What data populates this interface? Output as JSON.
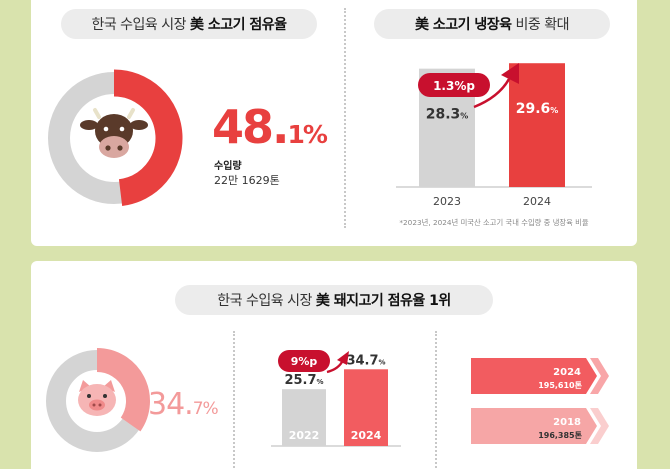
{
  "beef": {
    "share_title": {
      "prefix": "한국 수입육 시장",
      "bold": "美 소고기 점유율"
    },
    "share_main": "48.",
    "share_decimal": "1%",
    "share_value": 48.1,
    "import_label": "수입량",
    "import_value": "22만 1629톤",
    "frozen_title": {
      "bold": "美 소고기 냉장육",
      "suffix": "비중 확대"
    },
    "change_label": "1.3%p",
    "footnote": "*2023년, 2024년 미국산 소고기 국내 수입량 중 냉장육 비율"
  },
  "pork": {
    "title": {
      "prefix": "한국 수입육 시장",
      "bold": "美 돼지고기 점유율 1위"
    },
    "share_main": "34.",
    "share_decimal": "7%",
    "share_value": 34.7,
    "change_label": "9%p"
  },
  "colors": {
    "red": "#e8403f",
    "red_dark": "#c8102e",
    "gray": "#d4d4d4",
    "pink": "#f39a9a",
    "pink_light": "#f6a6a6",
    "bg": "#d9e3ad"
  },
  "icons": {
    "beef": "cow-icon",
    "pork": "pig-icon",
    "trend": "up-arrow-icon"
  },
  "chart_data": [
    {
      "type": "pie",
      "title": "",
      "slices": [
        {
          "label": "",
          "value": 48.1
        },
        {
          "label": "",
          "value": 51.9
        }
      ]
    },
    {
      "type": "bar",
      "categories": [
        "2023",
        "2024"
      ],
      "values": [
        28.3,
        29.6
      ],
      "labels_main": [
        "28.3",
        "29.6"
      ],
      "unit": "%",
      "ylim": [
        0,
        33
      ]
    },
    {
      "type": "pie",
      "title": "",
      "slices": [
        {
          "label": "",
          "value": 34.7
        },
        {
          "label": "",
          "value": 65.3
        }
      ]
    },
    {
      "type": "bar",
      "categories": [
        "2022",
        "2024"
      ],
      "values": [
        25.7,
        34.7
      ],
      "labels_main": [
        "25.7",
        "34.7"
      ],
      "unit": "%",
      "ylim": [
        0,
        38
      ]
    },
    {
      "type": "bar",
      "orientation": "horizontal",
      "categories": [
        "2024",
        "2018"
      ],
      "values": [
        195610,
        196385
      ],
      "value_labels": [
        "195,610톤",
        "196,385톤"
      ]
    }
  ]
}
